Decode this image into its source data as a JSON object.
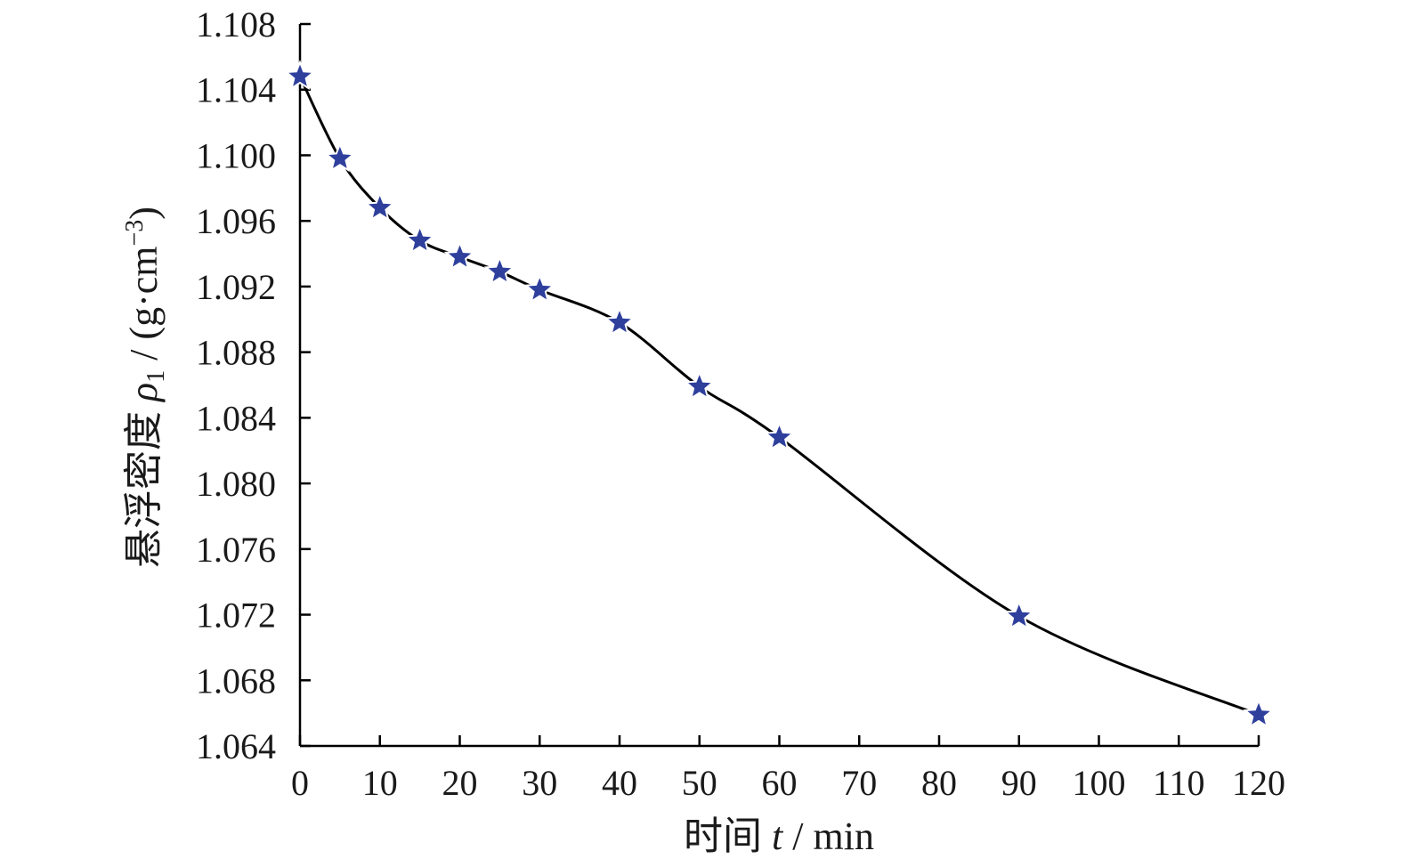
{
  "chart_data": {
    "type": "line",
    "title": "",
    "xlabel": {
      "prefix": "时间 ",
      "var": "t",
      "suffix": " / min"
    },
    "ylabel": {
      "prefix": "悬浮密度 ",
      "var": "ρ",
      "sub": "1",
      "mid": " / (g·cm",
      "sup": "−3",
      "end": ")"
    },
    "xlim": [
      0,
      120
    ],
    "ylim": [
      1.064,
      1.108
    ],
    "xticks": [
      0,
      10,
      20,
      30,
      40,
      50,
      60,
      70,
      80,
      90,
      100,
      110,
      120
    ],
    "yticks": [
      1.064,
      1.068,
      1.072,
      1.076,
      1.08,
      1.084,
      1.088,
      1.092,
      1.096,
      1.1,
      1.104,
      1.108
    ],
    "ytick_decimals": 3,
    "grid": false,
    "series": [
      {
        "x": [
          0,
          5,
          10,
          15,
          20,
          25,
          30,
          40,
          50,
          60,
          90,
          120
        ],
        "values": [
          1.1048,
          1.0998,
          1.0968,
          1.0948,
          1.0938,
          1.0929,
          1.0918,
          1.0898,
          1.0859,
          1.0828,
          1.0719,
          1.0659
        ],
        "marker": "star",
        "marker_color": "#2e3f9c",
        "line_color": "#000000"
      }
    ]
  }
}
